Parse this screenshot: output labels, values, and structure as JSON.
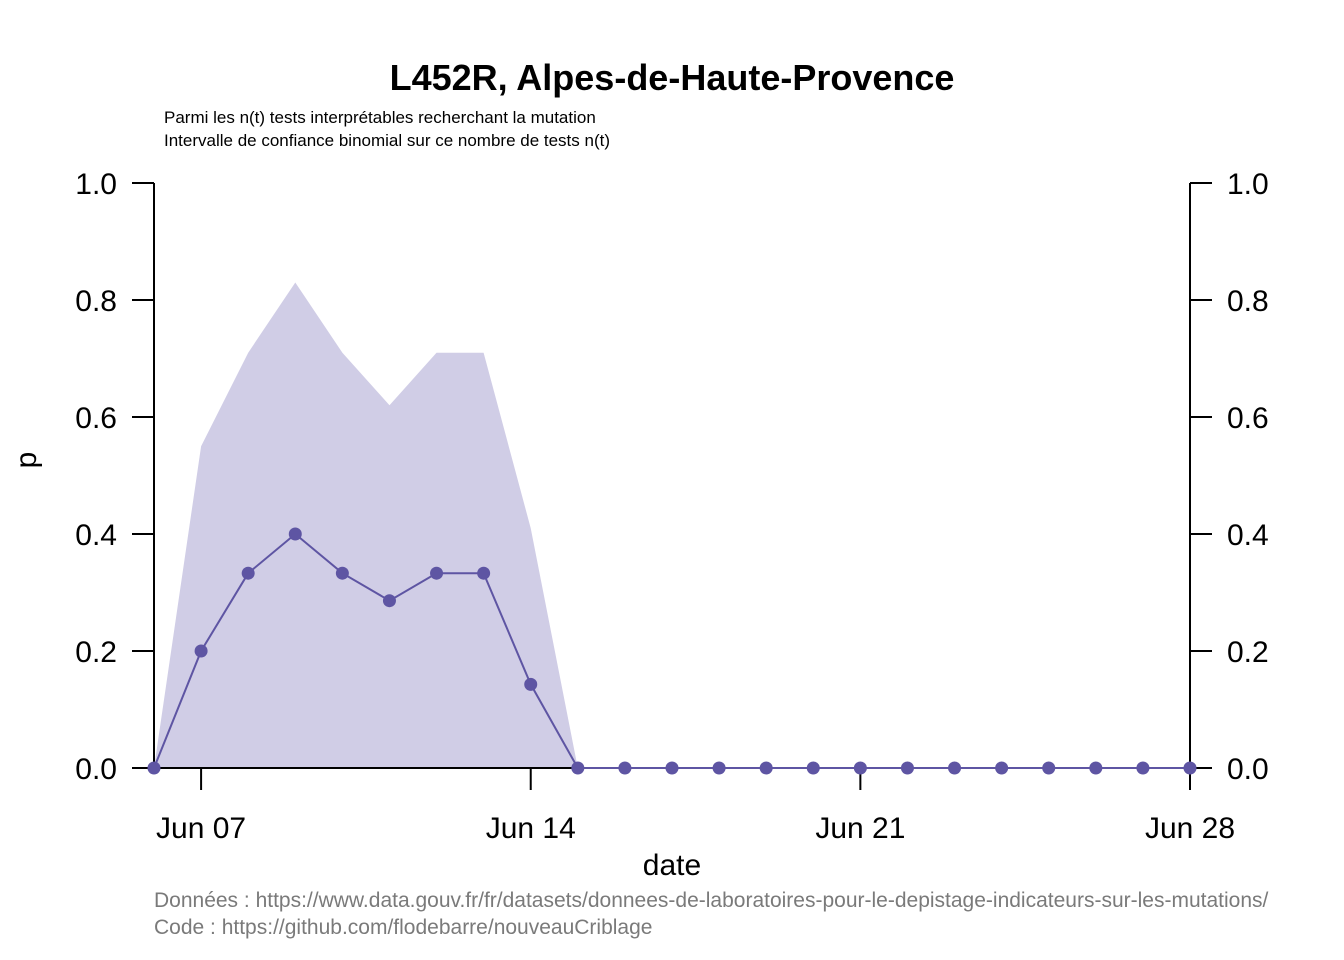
{
  "chart_data": {
    "type": "line",
    "title": "L452R, Alpes-de-Haute-Provence",
    "subtitle_lines": [
      "Parmi les n(t) tests interprétables recherchant la mutation",
      "Intervalle de confiance binomial sur ce nombre de tests n(t)"
    ],
    "xlabel": "date",
    "ylabel": "p",
    "x_dates": [
      "2021-06-06",
      "2021-06-07",
      "2021-06-08",
      "2021-06-09",
      "2021-06-10",
      "2021-06-11",
      "2021-06-12",
      "2021-06-13",
      "2021-06-14",
      "2021-06-15",
      "2021-06-16",
      "2021-06-17",
      "2021-06-18",
      "2021-06-19",
      "2021-06-20",
      "2021-06-21",
      "2021-06-22",
      "2021-06-23",
      "2021-06-24",
      "2021-06-25",
      "2021-06-26",
      "2021-06-27",
      "2021-06-28"
    ],
    "x_tick_dates": [
      "2021-06-07",
      "2021-06-14",
      "2021-06-21",
      "2021-06-28"
    ],
    "x_tick_labels": [
      "Jun 07",
      "Jun 14",
      "Jun 21",
      "Jun 28"
    ],
    "xlim": [
      "2021-06-06",
      "2021-06-28"
    ],
    "ylim": [
      0,
      1
    ],
    "y_ticks": [
      0.0,
      0.2,
      0.4,
      0.6,
      0.8,
      1.0
    ],
    "y_tick_labels": [
      "0.0",
      "0.2",
      "0.4",
      "0.6",
      "0.8",
      "1.0"
    ],
    "series": [
      {
        "values": [
          0,
          0.2,
          0.333,
          0.4,
          0.333,
          0.286,
          0.333,
          0.333,
          0.143,
          0,
          0,
          0,
          0,
          0,
          0,
          0,
          0,
          0,
          0,
          0,
          0,
          0,
          0
        ],
        "ci_lower": [
          0,
          0,
          0,
          0,
          0,
          0,
          0,
          0,
          0,
          0,
          0,
          0,
          0,
          0,
          0,
          0,
          0,
          0,
          0,
          0,
          0,
          0,
          0
        ],
        "ci_upper": [
          0,
          0.55,
          0.71,
          0.83,
          0.71,
          0.62,
          0.71,
          0.71,
          0.41,
          0,
          0,
          0,
          0,
          0,
          0,
          0,
          0,
          0,
          0,
          0,
          0,
          0,
          0
        ],
        "color": "#5e55a3",
        "ci_color": "#d0cde6"
      }
    ],
    "right_axis_duplicate": true,
    "grid": false
  },
  "footer": {
    "data_source": "Données : https://www.data.gouv.fr/fr/datasets/donnees-de-laboratoires-pour-le-depistage-indicateurs-sur-les-mutations/",
    "code_source": "Code : https://github.com/flodebarre/nouveauCriblage"
  }
}
